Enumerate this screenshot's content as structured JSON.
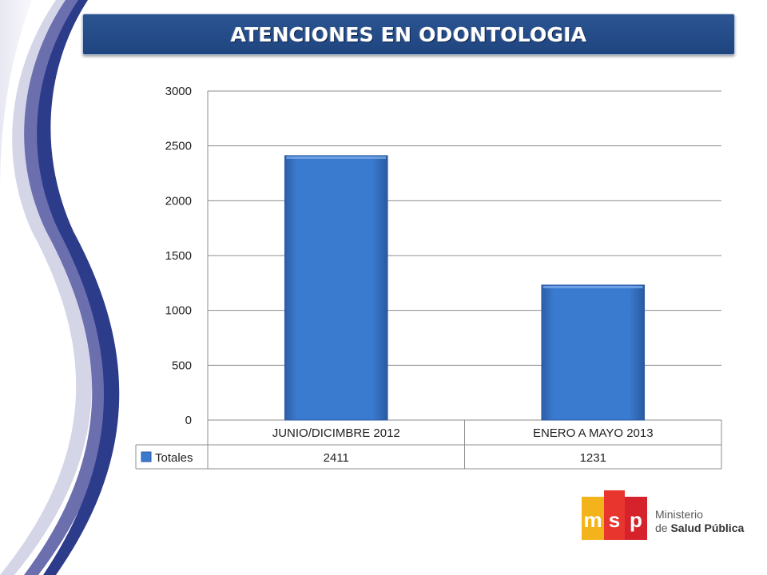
{
  "title": "ATENCIONES EN ODONTOLOGIA",
  "colors": {
    "bar": "#3a7bd0",
    "banner": "#24497f",
    "grid": "#8c8c8c"
  },
  "logo": {
    "brand": "msp",
    "line1": "Ministerio",
    "line2_prefix": "de ",
    "line2_bold": "Salud Pública"
  },
  "chart_data": {
    "type": "bar",
    "categories": [
      "JUNIO/DICIMBRE 2012",
      "ENERO A MAYO 2013"
    ],
    "series": [
      {
        "name": "Totales",
        "values": [
          2411,
          1231
        ]
      }
    ],
    "ylim": [
      0,
      3000
    ],
    "yticks": [
      0,
      500,
      1000,
      1500,
      2000,
      2500,
      3000
    ],
    "grid": true,
    "legend": "data-table"
  }
}
